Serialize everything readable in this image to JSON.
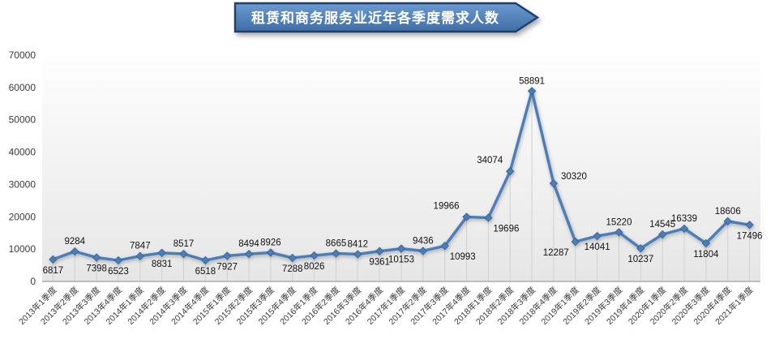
{
  "chart_data": {
    "type": "line",
    "title": "租赁和商务服务业近年各季度需求人数",
    "categories": [
      "2013年1季度",
      "2013年2季度",
      "2013年3季度",
      "2013年4季度",
      "2014年1季度",
      "2014年2季度",
      "2014年3季度",
      "2014年4季度",
      "2015年1季度",
      "2015年2季度",
      "2015年3季度",
      "2015年4季度",
      "2016年1季度",
      "2016年2季度",
      "2016年3季度",
      "2016年4季度",
      "2017年1季度",
      "2017年2季度",
      "2017年3季度",
      "2017年4季度",
      "2018年1季度",
      "2018年2季度",
      "2018年3季度",
      "2018年4季度",
      "2019年1季度",
      "2019年2季度",
      "2019年3季度",
      "2019年4季度",
      "2020年1季度",
      "2020年2季度",
      "2020年3季度",
      "2020年4季度",
      "2021年1季度"
    ],
    "values": [
      6817,
      9284,
      7398,
      6523,
      7847,
      8831,
      8517,
      6518,
      7927,
      8494,
      8926,
      7288,
      8026,
      8665,
      8412,
      9361,
      10153,
      9436,
      10993,
      19966,
      19696,
      34074,
      58891,
      30320,
      12287,
      14041,
      15220,
      10237,
      14545,
      16339,
      11804,
      18606,
      17496
    ],
    "label_positions": [
      "below",
      "above",
      "below",
      "below",
      "above",
      "below",
      "above",
      "below",
      "below",
      "above",
      "above",
      "below",
      "below",
      "above",
      "above",
      "below",
      "below",
      "above",
      "below-right",
      "above-left",
      "below-right",
      "above-left",
      "above",
      "right",
      "below-left",
      "below",
      "above",
      "below",
      "above",
      "above",
      "below",
      "above",
      "below"
    ],
    "ylim": [
      0,
      70000
    ],
    "y_ticks": [
      0,
      10000,
      20000,
      30000,
      40000,
      50000,
      60000,
      70000
    ],
    "xlabel": "",
    "ylabel": "",
    "legend": "none",
    "grid": "drop-lines",
    "colors": {
      "line": "#4a7ebb",
      "marker_edge": "#35608f",
      "banner_fill_top": "#6b9bd2",
      "banner_fill_bottom": "#3f6ca3",
      "banner_border": "#1c3f6e",
      "banner_text": "#ffffff",
      "drop_line": "#d0d0d0",
      "axis_line": "#9e9e9e",
      "tick_text": "#3a3a3a",
      "data_label": "#111111",
      "plot_bg_top": "#fefefe",
      "plot_bg_bottom": "#e6e6e6"
    }
  }
}
